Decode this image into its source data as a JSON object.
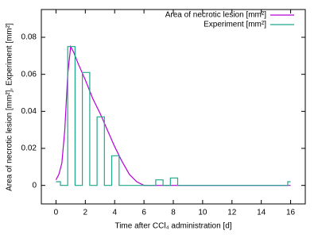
{
  "chart_data": {
    "type": "line",
    "x_label": "Time after CCl₄ administration [d]",
    "y_label": "Area of necrotic lesion [mm²], Experiment [mm²]",
    "xlim": [
      -1,
      17
    ],
    "ylim": [
      -0.01,
      0.095
    ],
    "xticks": [
      0,
      2,
      4,
      6,
      8,
      10,
      12,
      14,
      16
    ],
    "yticks": [
      0,
      0.02,
      0.04,
      0.06,
      0.08
    ],
    "legend": "top right",
    "grid": false,
    "series": [
      {
        "name": "Area of necrotic lesion [mm²]",
        "color": "#b400d8",
        "x": [
          0,
          0.2,
          0.4,
          0.6,
          0.8,
          1.0,
          1.2,
          1.5,
          2,
          2.5,
          3,
          3.5,
          4,
          4.5,
          5,
          5.5,
          6,
          16
        ],
        "values": [
          0.003,
          0.006,
          0.012,
          0.03,
          0.06,
          0.075,
          0.072,
          0.066,
          0.057,
          0.047,
          0.039,
          0.03,
          0.021,
          0.013,
          0.006,
          0.002,
          0,
          0
        ]
      },
      {
        "name": "Experiment [mm²]",
        "color": "#1ea88a",
        "x": [
          0,
          0.3,
          0.3,
          0.8,
          0.8,
          1.3,
          1.3,
          1.8,
          1.8,
          2.3,
          2.3,
          2.8,
          2.8,
          3.3,
          3.3,
          3.8,
          3.8,
          4.3,
          4.3,
          6.8,
          6.8,
          7.3,
          7.3,
          7.8,
          7.8,
          8.3,
          8.3,
          15.8,
          15.8,
          16
        ],
        "values": [
          0.002,
          0.002,
          0,
          0,
          0.075,
          0.075,
          0,
          0,
          0.061,
          0.061,
          0,
          0,
          0.037,
          0.037,
          0,
          0,
          0.016,
          0.016,
          0,
          0,
          0.003,
          0.003,
          0,
          0,
          0.004,
          0.004,
          0,
          0,
          0.002,
          0.002
        ]
      }
    ]
  }
}
